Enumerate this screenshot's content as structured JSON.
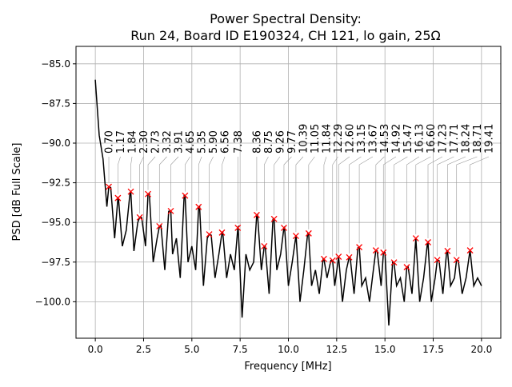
{
  "chart_data": {
    "type": "line",
    "title": "Power Spectral Density:",
    "subtitle": "Run 24, Board ID E190324, CH 121, lo gain, 25Ω",
    "xlabel": "Frequency [MHz]",
    "ylabel": "PSD [dB Full Scale]",
    "xlim": [
      -1.0,
      21.0
    ],
    "ylim": [
      -102.3,
      -83.9
    ],
    "xticks": [
      0.0,
      2.5,
      5.0,
      7.5,
      10.0,
      12.5,
      15.0,
      17.5,
      20.0
    ],
    "xtick_labels": [
      "0.0",
      "2.5",
      "5.0",
      "7.5",
      "10.0",
      "12.5",
      "15.0",
      "17.5",
      "20.0"
    ],
    "yticks": [
      -85.0,
      -87.5,
      -90.0,
      -92.5,
      -95.0,
      -97.5,
      -100.0
    ],
    "ytick_labels": [
      "−85.0",
      "−87.5",
      "−90.0",
      "−92.5",
      "−95.0",
      "−97.5",
      "−100.0"
    ],
    "grid": true,
    "line_color": "#000000",
    "marker_color": "#ff0000",
    "curve": {
      "x_start": 0.0,
      "x_step": 0.2,
      "y": [
        -86,
        -89.5,
        -91,
        -94,
        -92.8,
        -96,
        -93.5,
        -96.5,
        -95.5,
        -93.1,
        -96.8,
        -95,
        -94.7,
        -96.5,
        -93.2,
        -97.5,
        -96,
        -95.2,
        -98,
        -94.3,
        -97,
        -96,
        -98.5,
        -93.3,
        -97.5,
        -96.5,
        -98,
        -94,
        -99,
        -96,
        -95.8,
        -98.5,
        -97,
        -95.6,
        -98.5,
        -97,
        -98,
        -95.3,
        -101,
        -97,
        -98,
        -97.5,
        -94.5,
        -98,
        -96.5,
        -99.5,
        -94.8,
        -98,
        -97,
        -95.3,
        -99,
        -97.5,
        -95.9,
        -100,
        -98,
        -95.7,
        -99,
        -98,
        -99.5,
        -97.3,
        -98.5,
        -97.4,
        -99,
        -97.2,
        -100,
        -98,
        -97.2,
        -99.5,
        -96.6,
        -99,
        -98.5,
        -100,
        -98,
        -96.8,
        -99,
        -96.9,
        -101.5,
        -97.5,
        -99,
        -98.5,
        -100,
        -97.8,
        -99.5,
        -96,
        -100,
        -98.5,
        -96.3,
        -100,
        -98.5,
        -97.4,
        -99.5,
        -96.8,
        -99,
        -98.5,
        -97.4,
        -99.5,
        -98.5,
        -96.8,
        -99,
        -98.5,
        -99
      ]
    },
    "peaks": [
      {
        "x": 0.7,
        "y": -92.75,
        "label": "0.70"
      },
      {
        "x": 1.17,
        "y": -93.46,
        "label": "1.17"
      },
      {
        "x": 1.84,
        "y": -93.06,
        "label": "1.84"
      },
      {
        "x": 2.3,
        "y": -94.68,
        "label": "2.30"
      },
      {
        "x": 2.73,
        "y": -93.21,
        "label": "2.73"
      },
      {
        "x": 3.32,
        "y": -95.24,
        "label": "3.32"
      },
      {
        "x": 3.91,
        "y": -94.28,
        "label": "3.91"
      },
      {
        "x": 4.65,
        "y": -93.31,
        "label": "4.65"
      },
      {
        "x": 5.35,
        "y": -94.02,
        "label": "5.35"
      },
      {
        "x": 5.9,
        "y": -95.75,
        "label": "5.90"
      },
      {
        "x": 6.56,
        "y": -95.64,
        "label": "6.56"
      },
      {
        "x": 7.38,
        "y": -95.34,
        "label": "7.38"
      },
      {
        "x": 8.36,
        "y": -94.53,
        "label": "8.36"
      },
      {
        "x": 8.75,
        "y": -96.5,
        "label": "8.75"
      },
      {
        "x": 9.26,
        "y": -94.78,
        "label": "9.26"
      },
      {
        "x": 9.77,
        "y": -95.34,
        "label": "9.77"
      },
      {
        "x": 10.39,
        "y": -95.85,
        "label": "10.39"
      },
      {
        "x": 11.05,
        "y": -95.69,
        "label": "11.05"
      },
      {
        "x": 11.84,
        "y": -97.3,
        "label": "11.84"
      },
      {
        "x": 12.29,
        "y": -97.4,
        "label": "12.29"
      },
      {
        "x": 12.6,
        "y": -97.16,
        "label": "12.60"
      },
      {
        "x": 13.15,
        "y": -97.2,
        "label": "13.15"
      },
      {
        "x": 13.67,
        "y": -96.56,
        "label": "13.67"
      },
      {
        "x": 14.53,
        "y": -96.76,
        "label": "14.53"
      },
      {
        "x": 14.92,
        "y": -96.9,
        "label": "14.92"
      },
      {
        "x": 15.47,
        "y": -97.52,
        "label": "15.47"
      },
      {
        "x": 16.13,
        "y": -97.82,
        "label": "16.13"
      },
      {
        "x": 16.6,
        "y": -96.0,
        "label": "16.60"
      },
      {
        "x": 17.23,
        "y": -96.25,
        "label": "17.23"
      },
      {
        "x": 17.71,
        "y": -97.37,
        "label": "17.71"
      },
      {
        "x": 18.24,
        "y": -96.8,
        "label": "18.24"
      },
      {
        "x": 18.71,
        "y": -97.37,
        "label": "18.71"
      },
      {
        "x": 19.41,
        "y": -96.76,
        "label": "19.41"
      }
    ]
  }
}
